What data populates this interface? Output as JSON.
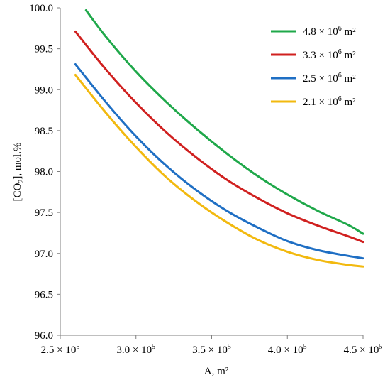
{
  "chart_data": {
    "type": "line",
    "xlabel": "A, m²",
    "ylabel_parts": {
      "main": "[CO",
      "sub": "2",
      "rest": "], mol.%"
    },
    "xlim": [
      250000,
      450000
    ],
    "ylim": [
      96.0,
      100.0
    ],
    "x_ticks": [
      250000,
      300000,
      350000,
      400000,
      450000
    ],
    "x_tick_labels": [
      {
        "mantissa": "2.5 × 10",
        "exp": "5"
      },
      {
        "mantissa": "3.0 × 10",
        "exp": "5"
      },
      {
        "mantissa": "3.5 × 10",
        "exp": "5"
      },
      {
        "mantissa": "4.0 × 10",
        "exp": "5"
      },
      {
        "mantissa": "4.5 × 10",
        "exp": "5"
      }
    ],
    "y_ticks": [
      96.0,
      96.5,
      97.0,
      97.5,
      98.0,
      98.5,
      99.0,
      99.5,
      100.0
    ],
    "y_tick_labels": [
      "96.0",
      "96.5",
      "97.0",
      "97.5",
      "98.0",
      "98.5",
      "99.0",
      "99.5",
      "100.0"
    ],
    "grid": false,
    "legend_position": "top-right",
    "series": [
      {
        "name": "4.8 × 10⁶ m²",
        "legend": {
          "mantissa": "4.8 × 10",
          "exp": "6",
          "unit": " m²"
        },
        "color": "#1fa84a",
        "x": [
          267000,
          280000,
          300000,
          320000,
          340000,
          360000,
          380000,
          400000,
          420000,
          440000,
          450000
        ],
        "y": [
          99.97,
          99.65,
          99.22,
          98.85,
          98.52,
          98.22,
          97.95,
          97.72,
          97.52,
          97.35,
          97.24
        ]
      },
      {
        "name": "3.3 × 10⁶ m²",
        "legend": {
          "mantissa": "3.3 × 10",
          "exp": "6",
          "unit": " m²"
        },
        "color": "#d0201f",
        "x": [
          260000,
          280000,
          300000,
          320000,
          340000,
          360000,
          380000,
          400000,
          420000,
          440000,
          450000
        ],
        "y": [
          99.71,
          99.25,
          98.84,
          98.48,
          98.17,
          97.9,
          97.68,
          97.49,
          97.34,
          97.21,
          97.14
        ]
      },
      {
        "name": "2.5 × 10⁶ m²",
        "legend": {
          "mantissa": "2.5 × 10",
          "exp": "6",
          "unit": " m²"
        },
        "color": "#1f6fc4",
        "x": [
          260000,
          280000,
          300000,
          320000,
          340000,
          360000,
          380000,
          400000,
          420000,
          440000,
          450000
        ],
        "y": [
          99.31,
          98.85,
          98.43,
          98.07,
          97.77,
          97.52,
          97.32,
          97.15,
          97.04,
          96.97,
          96.94
        ]
      },
      {
        "name": "2.1 × 10⁶ m²",
        "legend": {
          "mantissa": "2.1 × 10",
          "exp": "6",
          "unit": " m²"
        },
        "color": "#f2b90f",
        "x": [
          260000,
          280000,
          300000,
          320000,
          340000,
          360000,
          380000,
          400000,
          420000,
          440000,
          450000
        ],
        "y": [
          99.18,
          98.72,
          98.3,
          97.93,
          97.63,
          97.38,
          97.17,
          97.02,
          96.92,
          96.86,
          96.84
        ]
      }
    ]
  }
}
